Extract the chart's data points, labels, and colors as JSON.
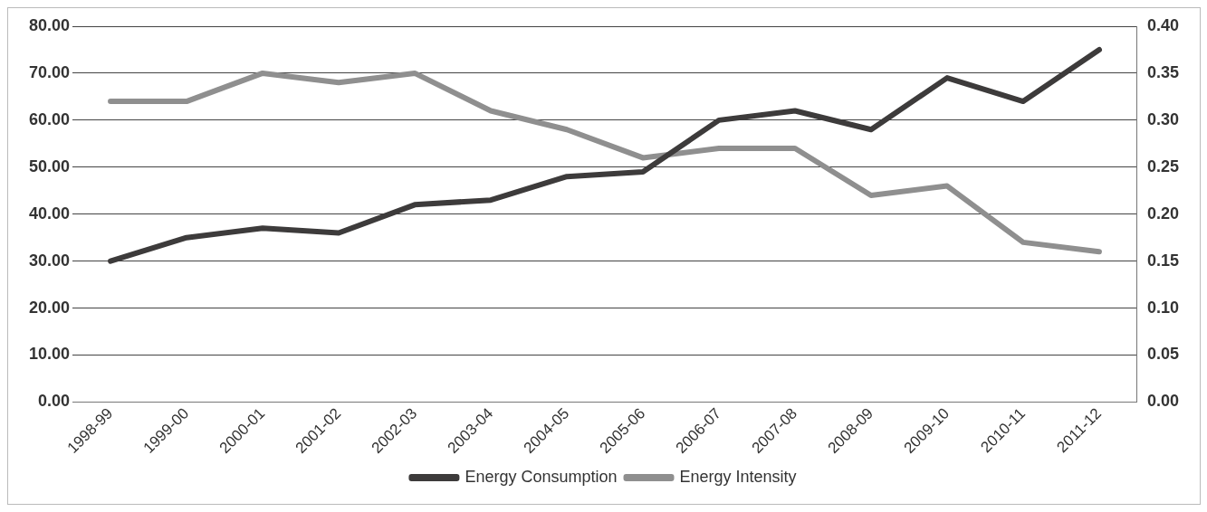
{
  "chart_data": {
    "type": "line",
    "categories": [
      "1998-99",
      "1999-00",
      "2000-01",
      "2001-02",
      "2002-03",
      "2003-04",
      "2004-05",
      "2005-06",
      "2006-07",
      "2007-08",
      "2008-09",
      "2009-10",
      "2010-11",
      "2011-12"
    ],
    "series": [
      {
        "name": "Energy Consumption",
        "color": "#3d3b3b",
        "values": [
          30,
          35,
          37,
          36,
          42,
          43,
          48,
          49,
          60,
          62,
          58,
          69,
          64,
          75
        ]
      },
      {
        "name": "Energy Intensity",
        "color": "#8f8f8f",
        "axis": "y2",
        "values": [
          0.32,
          0.32,
          0.35,
          0.34,
          0.35,
          0.31,
          0.29,
          0.26,
          0.27,
          0.27,
          0.22,
          0.23,
          0.17,
          0.16
        ]
      }
    ],
    "ylim": [
      0,
      80
    ],
    "yticks": [
      {
        "value": 0,
        "label": "0.00"
      },
      {
        "value": 10,
        "label": "10.00"
      },
      {
        "value": 20,
        "label": "20.00"
      },
      {
        "value": 30,
        "label": "30.00"
      },
      {
        "value": 40,
        "label": "40.00"
      },
      {
        "value": 50,
        "label": "50.00"
      },
      {
        "value": 60,
        "label": "60.00"
      },
      {
        "value": 70,
        "label": "70.00"
      },
      {
        "value": 80,
        "label": "80.00"
      }
    ],
    "y2lim": [
      0,
      0.4
    ],
    "y2ticks": [
      {
        "value": 0,
        "label": "0.00"
      },
      {
        "value": 0.05,
        "label": "0.05"
      },
      {
        "value": 0.1,
        "label": "0.10"
      },
      {
        "value": 0.15,
        "label": "0.15"
      },
      {
        "value": 0.2,
        "label": "0.20"
      },
      {
        "value": 0.25,
        "label": "0.25"
      },
      {
        "value": 0.3,
        "label": "0.30"
      },
      {
        "value": 0.35,
        "label": "0.35"
      },
      {
        "value": 0.4,
        "label": "0.40"
      }
    ],
    "grid": "y",
    "legend": "bottom",
    "marker": "none",
    "line_style": "solid"
  }
}
